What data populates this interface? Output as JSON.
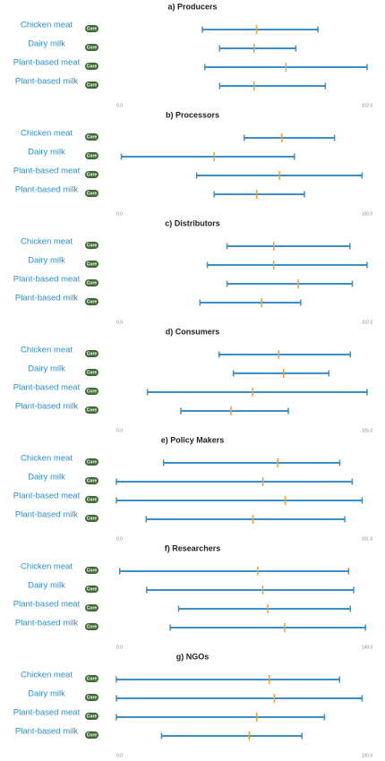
{
  "chart_data": [
    {
      "type": "range",
      "title": "a) Producers",
      "categories": [
        "Chicken meat",
        "Dairy milk",
        "Plant-based meat",
        "Plant-based milk"
      ],
      "badge": "Core",
      "low": [
        35,
        42,
        36,
        42
      ],
      "high": [
        82,
        73,
        102,
        85
      ],
      "median": [
        57,
        56,
        69,
        56
      ],
      "range_color": "#3a8fc8",
      "median_color": "#f0a030",
      "xlim": [
        0,
        102
      ],
      "xticks": [
        {
          "value": 0,
          "label": "0.0"
        },
        {
          "value": 102,
          "label": "102.0"
        }
      ]
    },
    {
      "type": "range",
      "title": "b) Processors",
      "categories": [
        "Chicken meat",
        "Dairy milk",
        "Plant-based meat",
        "Plant-based milk"
      ],
      "badge": "Core",
      "low": [
        51,
        2,
        32,
        39
      ],
      "high": [
        87,
        71,
        98,
        75
      ],
      "median": [
        66,
        39,
        65,
        56
      ],
      "range_color": "#3a8fc8",
      "median_color": "#f0a030",
      "xlim": [
        0,
        100
      ],
      "xticks": [
        {
          "value": 0,
          "label": "0.0"
        },
        {
          "value": 100,
          "label": "100.0"
        }
      ]
    },
    {
      "type": "range",
      "title": "c) Distributors",
      "categories": [
        "Chicken meat",
        "Dairy milk",
        "Plant-based meat",
        "Plant-based milk"
      ],
      "badge": "Core",
      "low": [
        45,
        37,
        45,
        34
      ],
      "high": [
        95,
        102,
        96,
        75
      ],
      "median": [
        64,
        64,
        74,
        59
      ],
      "range_color": "#3a8fc8",
      "median_color": "#f0a030",
      "xlim": [
        0,
        102
      ],
      "xticks": [
        {
          "value": 0,
          "label": "0.0"
        },
        {
          "value": 102,
          "label": "102.0"
        }
      ]
    },
    {
      "type": "range",
      "title": "d) Consumers",
      "categories": [
        "Chicken meat",
        "Dairy milk",
        "Plant-based meat",
        "Plant-based milk"
      ],
      "badge": "Core",
      "low": [
        43,
        49,
        13,
        27
      ],
      "high": [
        98,
        89,
        105,
        72
      ],
      "median": [
        68,
        70,
        57,
        48
      ],
      "range_color": "#3a8fc8",
      "median_color": "#f0a030",
      "xlim": [
        0,
        105
      ],
      "xticks": [
        {
          "value": 0,
          "label": "0.0"
        },
        {
          "value": 105,
          "label": "105.0"
        }
      ]
    },
    {
      "type": "range",
      "title": "e) Policy Makers",
      "categories": [
        "Chicken meat",
        "Dairy milk",
        "Plant-based meat",
        "Plant-based milk"
      ],
      "badge": "Core",
      "low": [
        19,
        0,
        0,
        12
      ],
      "high": [
        90,
        95,
        99,
        92
      ],
      "median": [
        65,
        59,
        68,
        55
      ],
      "range_color": "#3a8fc8",
      "median_color": "#f0a030",
      "xlim": [
        0,
        101
      ],
      "xticks": [
        {
          "value": 0,
          "label": "0.0"
        },
        {
          "value": 101,
          "label": "101.0"
        }
      ]
    },
    {
      "type": "range",
      "title": "f) Researchers",
      "categories": [
        "Chicken meat",
        "Dairy milk",
        "Plant-based meat",
        "Plant-based milk"
      ],
      "badge": "Core",
      "low": [
        2,
        18,
        37,
        32
      ],
      "high": [
        138,
        141,
        139,
        148
      ],
      "median": [
        84,
        87,
        90,
        100
      ],
      "range_color": "#3a8fc8",
      "median_color": "#f0a030",
      "xlim": [
        0,
        149
      ],
      "xticks": [
        {
          "value": 0,
          "label": "0.0"
        },
        {
          "value": 149,
          "label": "149.0"
        }
      ]
    },
    {
      "type": "range",
      "title": "g) NGOs",
      "categories": [
        "Chicken meat",
        "Dairy milk",
        "Plant-based meat",
        "Plant-based milk"
      ],
      "badge": "Core",
      "low": [
        0,
        0,
        0,
        18
      ],
      "high": [
        89,
        98,
        83,
        74
      ],
      "median": [
        61,
        63,
        56,
        53
      ],
      "range_color": "#3a8fc8",
      "median_color": "#f0a030",
      "xlim": [
        0,
        100
      ],
      "xticks": [
        {
          "value": 0,
          "label": "0.0"
        },
        {
          "value": 100,
          "label": "100.0"
        }
      ]
    }
  ]
}
